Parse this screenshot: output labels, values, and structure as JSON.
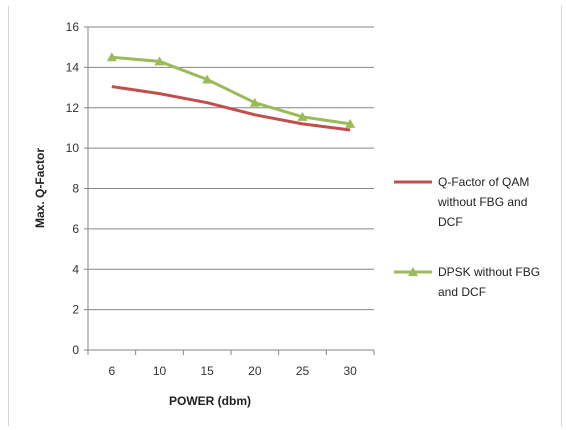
{
  "chart_data": {
    "type": "line",
    "xlabel": "POWER (dbm)",
    "ylabel": "Max. Q-Factor",
    "categories": [
      "6",
      "10",
      "15",
      "20",
      "25",
      "30"
    ],
    "ylim": [
      0,
      16
    ],
    "yticks": [
      0,
      2,
      4,
      6,
      8,
      10,
      12,
      14,
      16
    ],
    "grid": "horizontal",
    "legend_position": "right",
    "series": [
      {
        "name": "Q-Factor of QAM without FBG and DCF",
        "legend_lines": [
          "Q-Factor of QAM",
          "without FBG and",
          "DCF"
        ],
        "values": [
          13.05,
          12.7,
          12.25,
          11.65,
          11.2,
          10.9
        ],
        "color": "#c0504d",
        "marker": "none"
      },
      {
        "name": "DPSK without FBG and DCF",
        "legend_lines": [
          "DPSK without FBG",
          "and DCF"
        ],
        "values": [
          14.5,
          14.3,
          13.4,
          12.25,
          11.55,
          11.2
        ],
        "color": "#9bbb59",
        "marker": "triangle"
      }
    ]
  }
}
